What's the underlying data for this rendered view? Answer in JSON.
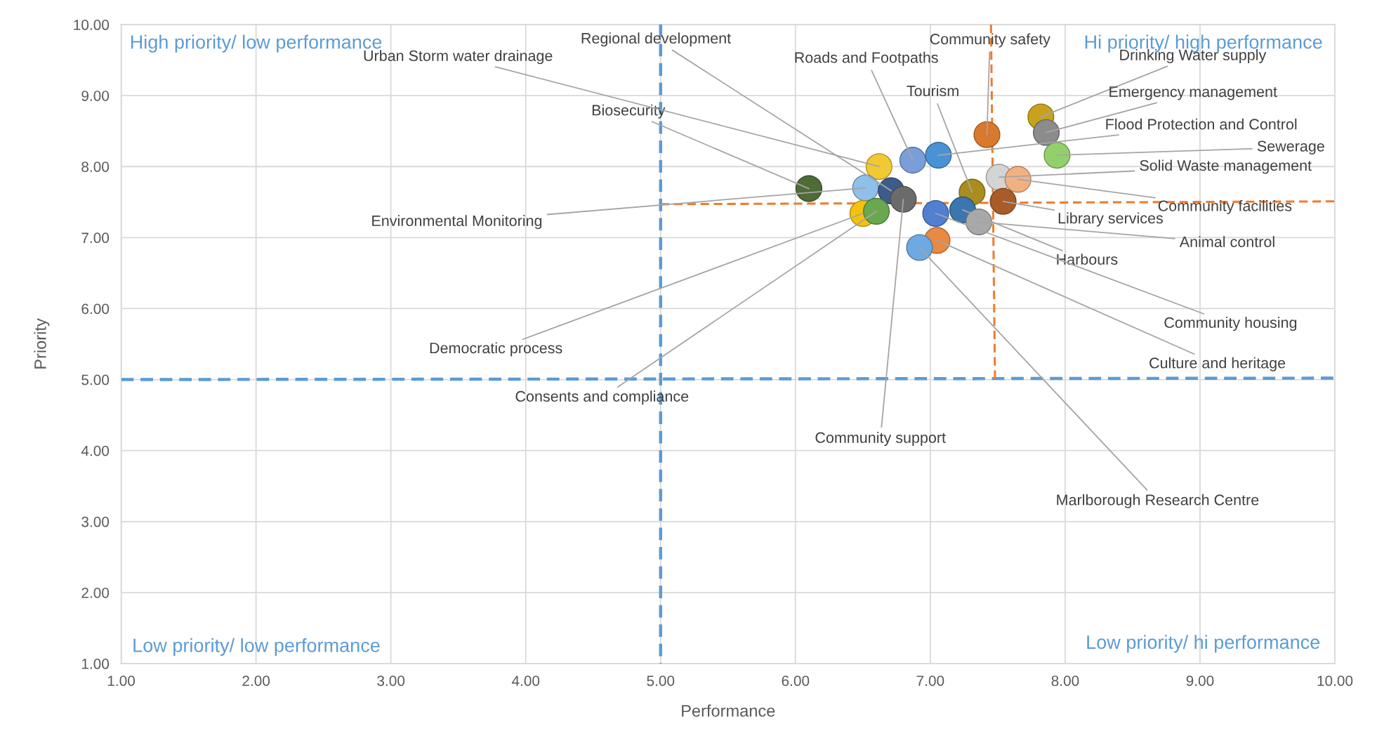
{
  "chart_data": {
    "type": "scatter",
    "xlabel": "Performance",
    "ylabel": "Priority",
    "xlim": [
      1,
      10
    ],
    "ylim": [
      1,
      10
    ],
    "xticks": [
      {
        "value": 1,
        "label": "1.00"
      },
      {
        "value": 2,
        "label": "2.00"
      },
      {
        "value": 3,
        "label": "3.00"
      },
      {
        "value": 4,
        "label": "4.00"
      },
      {
        "value": 5,
        "label": "5.00"
      },
      {
        "value": 6,
        "label": "6.00"
      },
      {
        "value": 7,
        "label": "7.00"
      },
      {
        "value": 8,
        "label": "8.00"
      },
      {
        "value": 9,
        "label": "9.00"
      },
      {
        "value": 10,
        "label": "10.00"
      }
    ],
    "yticks": [
      {
        "value": 1,
        "label": "1.00"
      },
      {
        "value": 2,
        "label": "2.00"
      },
      {
        "value": 3,
        "label": "3.00"
      },
      {
        "value": 4,
        "label": "4.00"
      },
      {
        "value": 5,
        "label": "5.00"
      },
      {
        "value": 6,
        "label": "6.00"
      },
      {
        "value": 7,
        "label": "7.00"
      },
      {
        "value": 8,
        "label": "8.00"
      },
      {
        "value": 9,
        "label": "9.00"
      },
      {
        "value": 10,
        "label": "10.00"
      }
    ],
    "grid": true,
    "marker": "circle",
    "series": [
      {
        "x": [
          6.1,
          6.62,
          6.52,
          6.71,
          6.8,
          6.5,
          6.6,
          6.87,
          7.06,
          7.42,
          7.82,
          7.86,
          7.94,
          7.51,
          7.65,
          7.31,
          7.54,
          7.24,
          7.36,
          7.04,
          7.05,
          6.92
        ],
        "values": [
          7.69,
          8.0,
          7.7,
          7.66,
          7.54,
          7.34,
          7.37,
          8.09,
          8.16,
          8.45,
          8.7,
          8.48,
          8.16,
          7.85,
          7.82,
          7.64,
          7.51,
          7.39,
          7.22,
          7.34,
          6.96,
          6.86
        ],
        "colors": [
          "#4f6b36",
          "#f1c933",
          "#8ec0ea",
          "#3d5c8c",
          "#6b6b6b",
          "#f4c20d",
          "#6aa84f",
          "#7a9ed9",
          "#4a92d6",
          "#d9792e",
          "#c8a21c",
          "#8c8c8c",
          "#93cf6b",
          "#d4d4d4",
          "#f3b182",
          "#a98d1e",
          "#a95b2a",
          "#3b76ae",
          "#a9a9a9",
          "#527fcf",
          "#e98a42",
          "#6caae1"
        ]
      },
      {
        "type": "line",
        "x": [
          5,
          5
        ],
        "values": [
          10,
          1
        ],
        "color": "#5b9bd5",
        "line_style": "dashed",
        "marker": "none"
      },
      {
        "type": "line",
        "x": [
          1,
          10
        ],
        "values": [
          5,
          5.02
        ],
        "color": "#5b9bd5",
        "line_style": "dashed",
        "marker": "none"
      },
      {
        "type": "line",
        "x": [
          7.45,
          7.48
        ],
        "values": [
          10,
          4.95
        ],
        "color": "#ed7d31",
        "line_style": "dashed",
        "marker": "none"
      },
      {
        "type": "line",
        "x": [
          5,
          10
        ],
        "values": [
          7.47,
          7.51
        ],
        "color": "#ed7d31",
        "line_style": "dashed",
        "marker": "none"
      }
    ],
    "annotations": [
      "High priority/ low performance",
      "Hi priority/ high performance",
      "Low priority/ low performance",
      "Low priority/ hi performance",
      {
        "text": "Biosecurity",
        "x": 6.1,
        "y": 7.69
      },
      {
        "text": "Urban Storm water drainage",
        "x": 6.62,
        "y": 8.0
      },
      {
        "text": "Environmental Monitoring",
        "x": 6.52,
        "y": 7.7
      },
      {
        "text": "Regional development",
        "x": 6.71,
        "y": 7.66
      },
      {
        "text": "Community support",
        "x": 6.8,
        "y": 7.54
      },
      {
        "text": "Democratic process",
        "x": 6.5,
        "y": 7.34
      },
      {
        "text": "Consents and compliance",
        "x": 6.6,
        "y": 7.37
      },
      {
        "text": "Roads and Footpaths",
        "x": 6.87,
        "y": 8.09
      },
      {
        "text": "Flood Protection and Control",
        "x": 7.06,
        "y": 8.16
      },
      {
        "text": "Community safety",
        "x": 7.42,
        "y": 8.45
      },
      {
        "text": "Drinking Water supply",
        "x": 7.82,
        "y": 8.7
      },
      {
        "text": "Emergency management",
        "x": 7.86,
        "y": 8.48
      },
      {
        "text": "Sewerage",
        "x": 7.94,
        "y": 8.16
      },
      {
        "text": "Solid Waste management",
        "x": 7.51,
        "y": 7.85
      },
      {
        "text": "Community facilities",
        "x": 7.65,
        "y": 7.82
      },
      {
        "text": "Tourism",
        "x": 7.31,
        "y": 7.64
      },
      {
        "text": "Library services",
        "x": 7.54,
        "y": 7.51
      },
      {
        "text": "Harbours",
        "x": 7.24,
        "y": 7.39
      },
      {
        "text": "Animal control",
        "x": 7.36,
        "y": 7.22
      },
      {
        "text": "Community housing",
        "x": 7.04,
        "y": 7.34
      },
      {
        "text": "Culture and heritage",
        "x": 7.05,
        "y": 6.96
      },
      {
        "text": "Marlborough Research Centre",
        "x": 6.92,
        "y": 6.86
      }
    ]
  }
}
